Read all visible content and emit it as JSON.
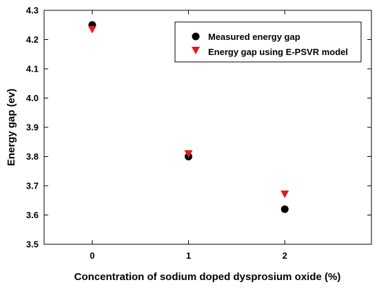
{
  "chart_data": {
    "type": "scatter",
    "title": "",
    "xlabel": "Concentration of sodium doped dysprosium oxide (%)",
    "ylabel": "Energy gap (ev)",
    "xlim": [
      -0.5,
      2.9
    ],
    "ylim": [
      3.5,
      4.3
    ],
    "xticks": [
      0,
      1,
      2
    ],
    "yticks": [
      3.5,
      3.6,
      3.7,
      3.8,
      3.9,
      4.0,
      4.1,
      4.2,
      4.3
    ],
    "ytick_labels": [
      "3.5",
      "3.6",
      "3.7",
      "3.8",
      "3.9",
      "4.0",
      "4.1",
      "4.2",
      "4.3"
    ],
    "grid": false,
    "legend_position": "top-right",
    "series": [
      {
        "name": "Measured energy gap",
        "marker": "circle",
        "color": "#000000",
        "x": [
          0,
          1,
          2
        ],
        "y": [
          4.25,
          3.8,
          3.62
        ]
      },
      {
        "name": "Energy gap using E-PSVR model",
        "marker": "triangle-down",
        "color": "#e31a1c",
        "x": [
          0,
          1,
          2
        ],
        "y": [
          4.235,
          3.81,
          3.672
        ]
      }
    ]
  }
}
